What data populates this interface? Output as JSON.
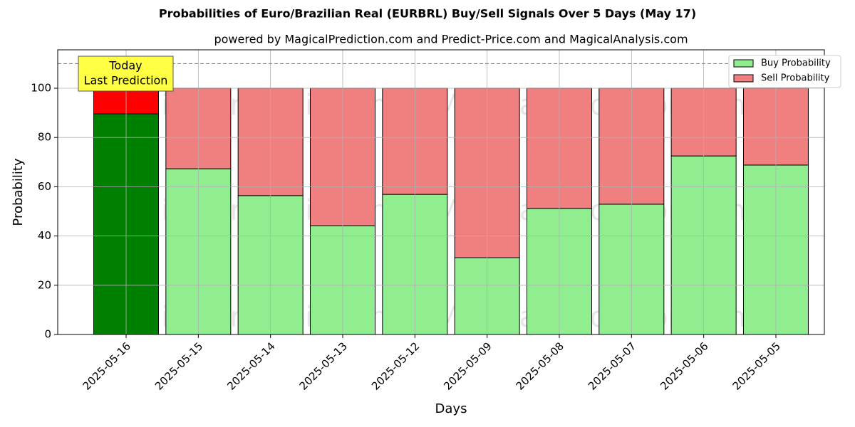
{
  "chart_data": {
    "type": "stacked_bar",
    "title": "Probabilities of Euro/Brazilian Real (EURBRL) Buy/Sell Signals Over 5 Days (May 17)",
    "subtitle": "powered by MagicalPrediction.com and Predict-Price.com and MagicalAnalysis.com",
    "x_label": "Days",
    "y_label": "Probability",
    "categories": [
      "2025-05-16",
      "2025-05-15",
      "2025-05-14",
      "2025-05-13",
      "2025-05-12",
      "2025-05-09",
      "2025-05-08",
      "2025-05-07",
      "2025-05-06",
      "2025-05-05"
    ],
    "series": [
      {
        "name": "Buy Probability",
        "color": "#90ee90",
        "today_color": "#008000",
        "values": [
          89.6,
          67.3,
          56.4,
          44.2,
          56.9,
          31.2,
          51.2,
          52.9,
          72.5,
          68.8
        ]
      },
      {
        "name": "Sell Probability",
        "color": "#f08080",
        "today_color": "#ff0000",
        "values": [
          10.4,
          32.7,
          43.6,
          55.8,
          43.1,
          68.8,
          48.8,
          47.1,
          27.5,
          31.2
        ]
      }
    ],
    "ylim": [
      0,
      115.6
    ],
    "yticks": [
      0,
      20,
      40,
      60,
      80,
      100
    ],
    "reference_line": 110,
    "annotation": [
      "Today",
      "Last Prediction"
    ],
    "watermarks": [
      "MagicalAnalysis.com",
      "MagicalPrediction.com"
    ],
    "grid": true,
    "legend": "upper right"
  }
}
